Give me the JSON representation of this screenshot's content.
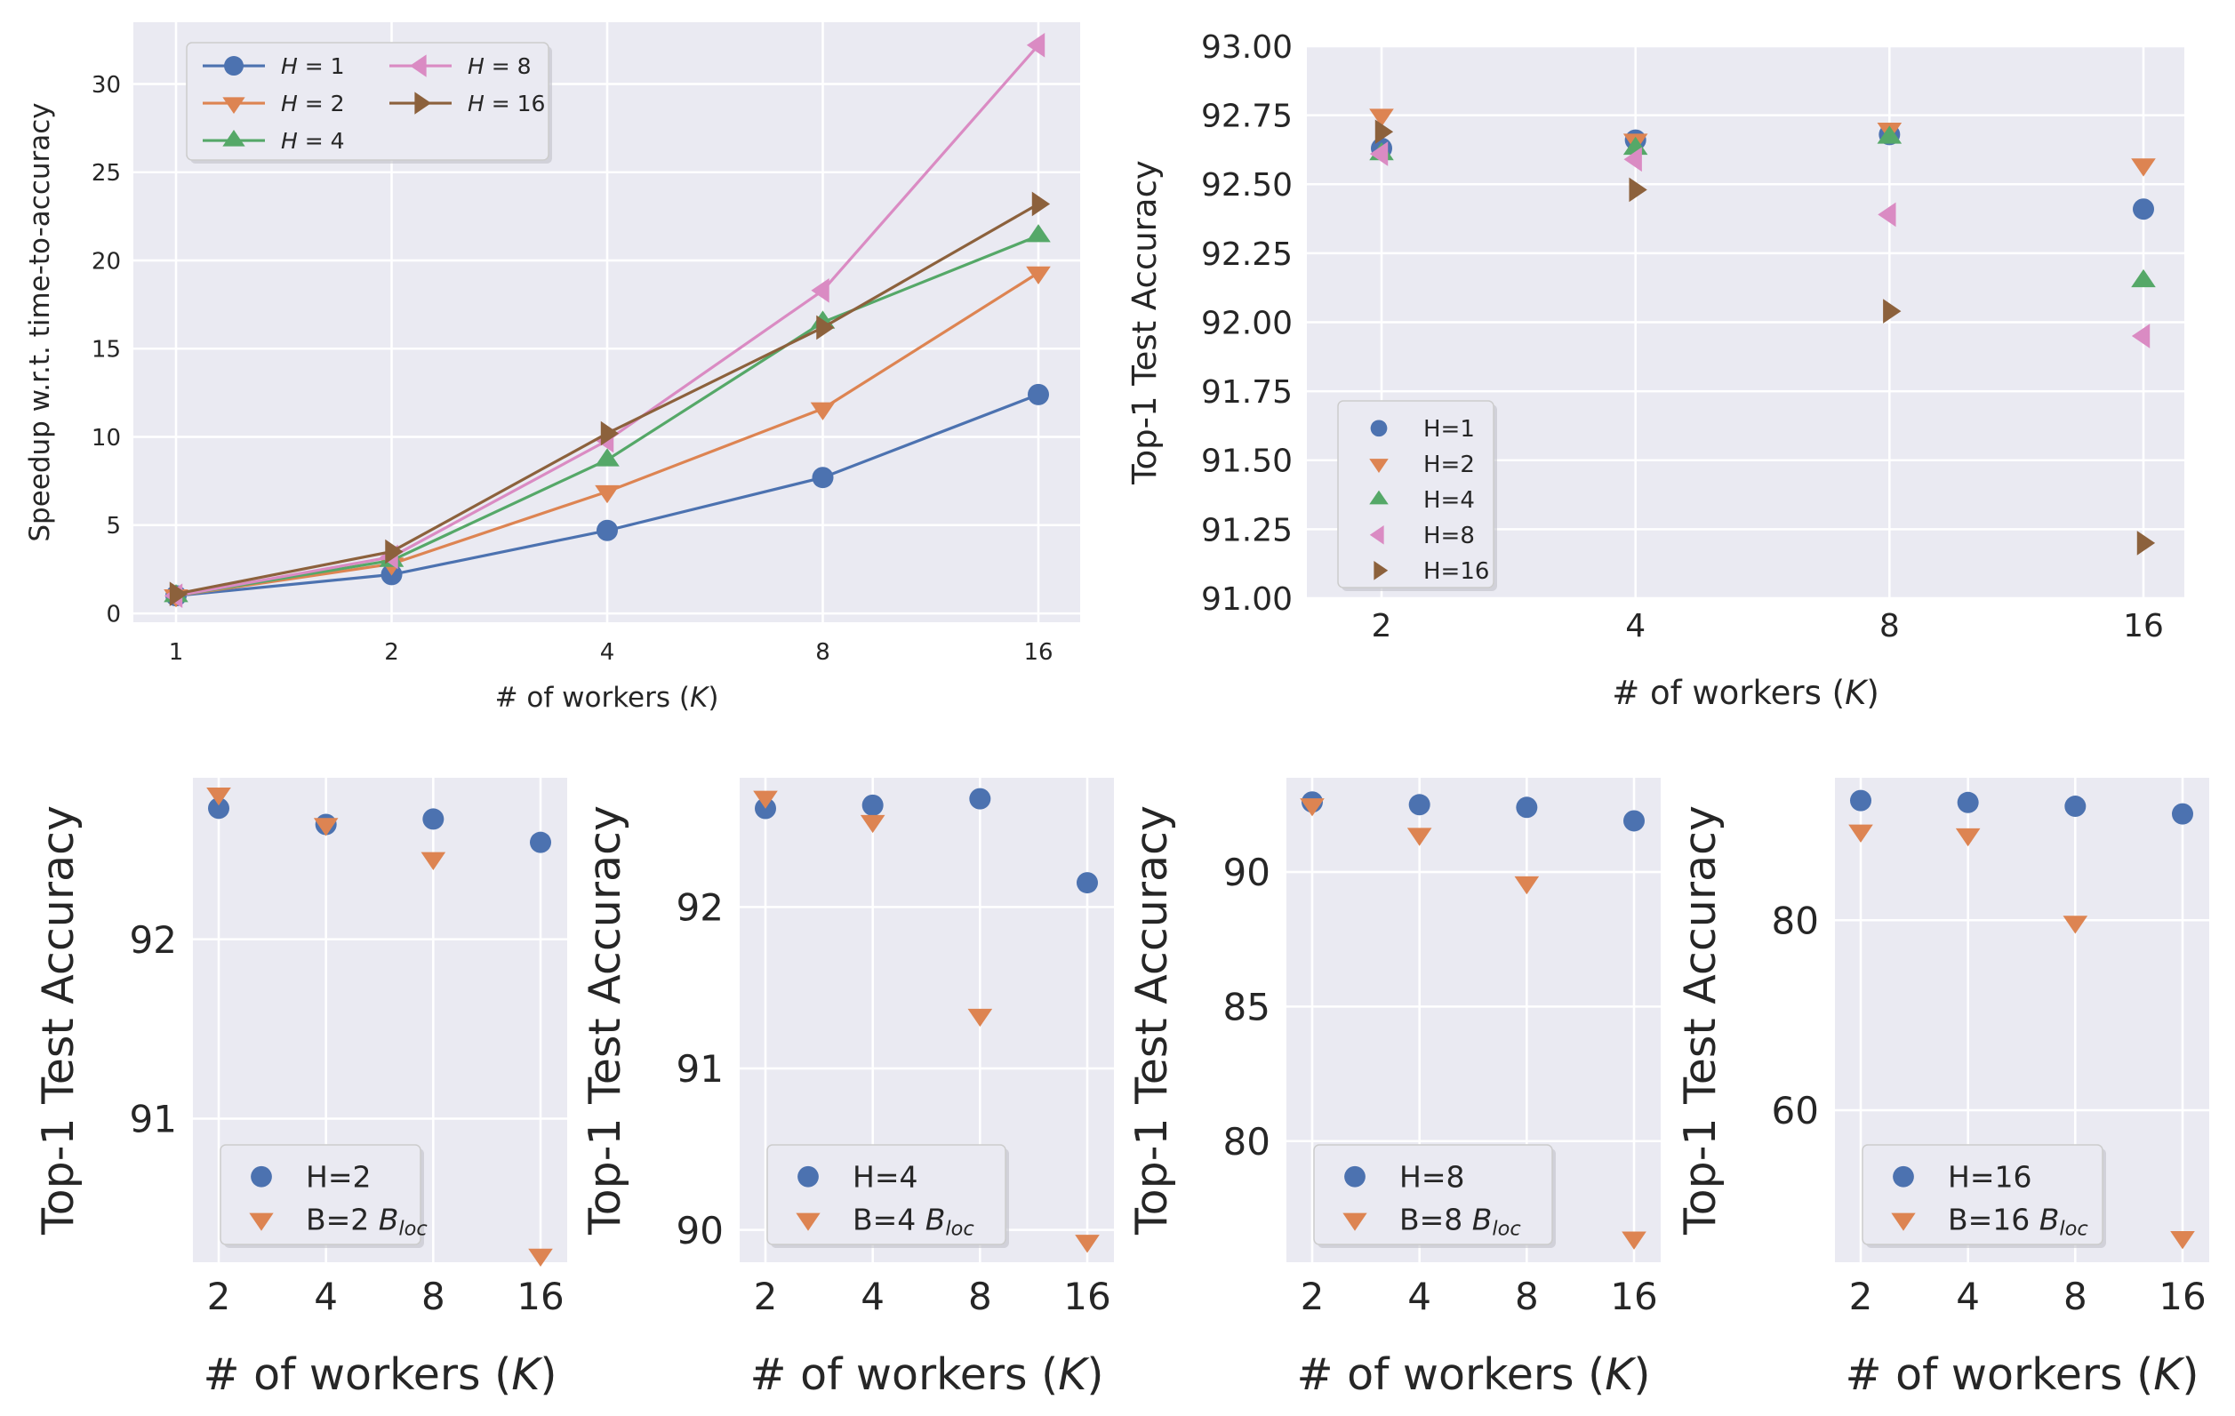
{
  "colors": {
    "background": "#eaeaf2",
    "grid": "#ffffff",
    "text": "#262626",
    "blue": "#4c72b0",
    "orange": "#dd8452",
    "green": "#55a868",
    "pink": "#da8bc3",
    "brown": "#8c613c"
  },
  "chart_data": [
    {
      "id": "speedup",
      "type": "line",
      "xlabel": "# of workers (K)",
      "ylabel": "Speedup w.r.t. time-to-accuracy",
      "x": [
        1,
        2,
        4,
        8,
        16
      ],
      "x_ticks": [
        "1",
        "2",
        "4",
        "8",
        "16"
      ],
      "x_scale": "log2",
      "ylim": [
        -0.5,
        33.5
      ],
      "y_ticks": [
        "0",
        "5",
        "10",
        "15",
        "20",
        "25",
        "30"
      ],
      "grid": true,
      "legend": "top-left, 2 columns",
      "series": [
        {
          "name": "H = 1",
          "marker": "circle",
          "color": "#4c72b0",
          "values": [
            1.0,
            2.2,
            4.7,
            7.7,
            12.4
          ]
        },
        {
          "name": "H = 2",
          "marker": "triangle-down",
          "color": "#dd8452",
          "values": [
            1.0,
            2.8,
            6.9,
            11.6,
            19.3
          ]
        },
        {
          "name": "H = 4",
          "marker": "triangle-up",
          "color": "#55a868",
          "values": [
            1.0,
            3.0,
            8.7,
            16.5,
            21.4
          ]
        },
        {
          "name": "H = 8",
          "marker": "triangle-left",
          "color": "#da8bc3",
          "values": [
            1.0,
            3.2,
            9.8,
            18.3,
            32.2
          ]
        },
        {
          "name": "H = 16",
          "marker": "triangle-right",
          "color": "#8c613c",
          "values": [
            1.1,
            3.5,
            10.2,
            16.2,
            23.2
          ]
        }
      ]
    },
    {
      "id": "accuracy-all",
      "type": "scatter",
      "xlabel": "# of workers (K)",
      "ylabel": "Top-1 Test Accuracy",
      "x": [
        2,
        4,
        8,
        16
      ],
      "x_ticks": [
        "2",
        "4",
        "8",
        "16"
      ],
      "x_scale": "log2",
      "ylim": [
        91.0,
        93.0
      ],
      "y_ticks": [
        "91.00",
        "91.25",
        "91.50",
        "91.75",
        "92.00",
        "92.25",
        "92.50",
        "92.75",
        "93.00"
      ],
      "grid": true,
      "legend": "bottom-left",
      "series": [
        {
          "name": "H=1",
          "marker": "circle",
          "color": "#4c72b0",
          "values": [
            92.63,
            92.66,
            92.68,
            92.41
          ]
        },
        {
          "name": "H=2",
          "marker": "triangle-down",
          "color": "#dd8452",
          "values": [
            92.75,
            92.66,
            92.7,
            92.57
          ]
        },
        {
          "name": "H=4",
          "marker": "triangle-up",
          "color": "#55a868",
          "values": [
            92.61,
            92.63,
            92.67,
            92.15
          ]
        },
        {
          "name": "H=8",
          "marker": "triangle-left",
          "color": "#da8bc3",
          "values": [
            92.61,
            92.59,
            92.39,
            91.95
          ]
        },
        {
          "name": "H=16",
          "marker": "triangle-right",
          "color": "#8c613c",
          "values": [
            92.69,
            92.48,
            92.04,
            91.2
          ]
        }
      ]
    },
    {
      "id": "accuracy-h2",
      "type": "scatter",
      "xlabel": "# of workers (K)",
      "ylabel": "Top-1 Test Accuracy",
      "x": [
        2,
        4,
        8,
        16
      ],
      "x_ticks": [
        "2",
        "4",
        "8",
        "16"
      ],
      "x_scale": "log2",
      "ylim": [
        90.2,
        92.9
      ],
      "y_ticks": [
        "91",
        "92"
      ],
      "grid": true,
      "legend": "bottom-left",
      "series": [
        {
          "name": "H=2",
          "marker": "circle",
          "color": "#4c72b0",
          "values": [
            92.73,
            92.64,
            92.67,
            92.54
          ]
        },
        {
          "name": "B=2 B_loc",
          "label": "B=2 ",
          "sub": "B",
          "subscript": "loc",
          "marker": "triangle-down",
          "color": "#dd8452",
          "values": [
            92.81,
            92.64,
            92.45,
            90.24
          ]
        }
      ]
    },
    {
      "id": "accuracy-h4",
      "type": "scatter",
      "xlabel": "# of workers (K)",
      "ylabel": "Top-1 Test Accuracy",
      "x": [
        2,
        4,
        8,
        16
      ],
      "x_ticks": [
        "2",
        "4",
        "8",
        "16"
      ],
      "x_scale": "log2",
      "ylim": [
        89.8,
        92.8
      ],
      "y_ticks": [
        "90",
        "91",
        "92"
      ],
      "grid": true,
      "legend": "bottom-left",
      "series": [
        {
          "name": "H=4",
          "marker": "circle",
          "color": "#4c72b0",
          "values": [
            92.61,
            92.63,
            92.67,
            92.15
          ]
        },
        {
          "name": "B=4 B_loc",
          "label": "B=4 ",
          "sub": "B",
          "subscript": "loc",
          "marker": "triangle-down",
          "color": "#dd8452",
          "values": [
            92.68,
            92.53,
            91.33,
            89.93
          ]
        }
      ]
    },
    {
      "id": "accuracy-h8",
      "type": "scatter",
      "xlabel": "# of workers (K)",
      "ylabel": "Top-1 Test Accuracy",
      "x": [
        2,
        4,
        8,
        16
      ],
      "x_ticks": [
        "2",
        "4",
        "8",
        "16"
      ],
      "x_scale": "log2",
      "ylim": [
        75.5,
        93.5
      ],
      "y_ticks": [
        "80",
        "85",
        "90"
      ],
      "grid": true,
      "legend": "bottom-left",
      "series": [
        {
          "name": "H=8",
          "marker": "circle",
          "color": "#4c72b0",
          "values": [
            92.6,
            92.5,
            92.4,
            91.9
          ]
        },
        {
          "name": "B=8 B_loc",
          "label": "B=8 ",
          "sub": "B",
          "subscript": "loc",
          "marker": "triangle-down",
          "color": "#dd8452",
          "values": [
            92.5,
            91.4,
            89.6,
            76.4
          ]
        }
      ]
    },
    {
      "id": "accuracy-h16",
      "type": "scatter",
      "xlabel": "# of workers (K)",
      "ylabel": "Top-1 Test Accuracy",
      "x": [
        2,
        4,
        8,
        16
      ],
      "x_ticks": [
        "2",
        "4",
        "8",
        "16"
      ],
      "x_scale": "log2",
      "ylim": [
        44,
        95
      ],
      "y_ticks": [
        "60",
        "80"
      ],
      "grid": true,
      "legend": "bottom-left",
      "series": [
        {
          "name": "H=16",
          "marker": "circle",
          "color": "#4c72b0",
          "values": [
            92.6,
            92.4,
            92.0,
            91.2
          ]
        },
        {
          "name": "B=16 B_loc",
          "label": "B=16 ",
          "sub": "B",
          "subscript": "loc",
          "marker": "triangle-down",
          "color": "#dd8452",
          "values": [
            89.4,
            89.0,
            79.8,
            46.6
          ]
        }
      ]
    }
  ]
}
